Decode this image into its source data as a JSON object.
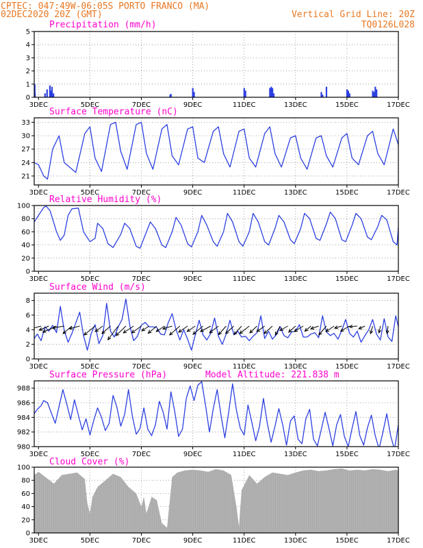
{
  "header": {
    "line1_left": "CPTEC:   047:49W-06:05S   PORTO FRANCO (MA)",
    "line2_left": "02DEC2020 20Z (GMT)",
    "line1_right": "Vertical Grid Line: 20Z",
    "line2_right": "TQ0126L028"
  },
  "colors": {
    "series": "#2b3fe0",
    "cloud": "#aaaaaa",
    "header": "#e87722",
    "title": "#ff00cc",
    "arrow": "#000000"
  },
  "x_axis": {
    "range_days": [
      2.833,
      17.0
    ],
    "tick_days": [
      3,
      5,
      7,
      9,
      11,
      13,
      15,
      17
    ],
    "tick_labels": [
      "3DEC",
      "5DEC",
      "7DEC",
      "9DEC",
      "11DEC",
      "13DEC",
      "15DEC",
      "17DEC"
    ],
    "grid": "dotted"
  },
  "chart_data": [
    {
      "type": "bar",
      "title": "Precipitation (mm/h)",
      "ylim": [
        0,
        5
      ],
      "yticks": [
        0,
        1,
        2,
        3,
        4,
        5
      ],
      "series": [
        {
          "x": [
            2.85,
            2.86,
            3.25,
            3.33,
            3.44,
            3.48,
            3.52,
            3.58,
            8.12,
            8.15,
            9.0,
            9.05,
            11.0,
            11.05,
            12.0,
            12.05,
            12.1,
            12.15,
            14.0,
            14.05,
            14.2,
            15.0,
            15.05,
            15.1,
            16.0,
            16.05,
            16.1,
            16.15
          ],
          "values": [
            1.0,
            0.3,
            0.3,
            0.6,
            0.9,
            0.5,
            0.8,
            0.3,
            0.2,
            0.25,
            0.7,
            0.4,
            0.7,
            0.5,
            0.7,
            0.8,
            0.7,
            0.3,
            0.4,
            0.2,
            0.8,
            0.6,
            0.5,
            0.3,
            0.5,
            0.4,
            0.8,
            0.6
          ]
        }
      ]
    },
    {
      "type": "line",
      "title": "Surface Temperature (nC)",
      "ylim": [
        19,
        34
      ],
      "yticks": [
        21,
        24,
        27,
        30,
        33
      ],
      "series": [
        {
          "x": [
            2.833,
            3.0,
            3.2,
            3.35,
            3.55,
            3.8,
            4.0,
            4.45,
            4.8,
            5.0,
            5.2,
            5.45,
            5.8,
            6.0,
            6.2,
            6.45,
            6.8,
            7.0,
            7.2,
            7.45,
            7.8,
            8.0,
            8.2,
            8.45,
            8.8,
            9.0,
            9.2,
            9.45,
            9.8,
            10.0,
            10.2,
            10.45,
            10.8,
            11.0,
            11.2,
            11.45,
            11.8,
            12.0,
            12.2,
            12.45,
            12.8,
            13.0,
            13.2,
            13.45,
            13.8,
            14.0,
            14.2,
            14.45,
            14.8,
            15.0,
            15.2,
            15.45,
            15.8,
            16.0,
            16.2,
            16.45,
            16.8,
            17.0
          ],
          "values": [
            24.0,
            23.5,
            21.0,
            20.3,
            27.0,
            30.0,
            24.0,
            21.8,
            30.5,
            32.0,
            25.0,
            22.0,
            32.5,
            33.0,
            26.5,
            22.5,
            32.5,
            33.0,
            26.0,
            22.5,
            31.5,
            32.5,
            25.5,
            23.5,
            31.5,
            32.0,
            25.0,
            24.0,
            31.0,
            32.0,
            26.0,
            23.0,
            31.0,
            31.5,
            25.0,
            23.0,
            30.5,
            32.0,
            26.0,
            23.0,
            29.5,
            30.0,
            25.0,
            22.5,
            29.5,
            30.0,
            25.5,
            23.0,
            29.5,
            30.5,
            25.0,
            23.5,
            30.0,
            31.0,
            26.0,
            23.5,
            31.5,
            28.0
          ]
        }
      ]
    },
    {
      "type": "line",
      "title": "Relative Humidity (%)",
      "ylim": [
        0,
        100
      ],
      "yticks": [
        0,
        20,
        40,
        60,
        80,
        100
      ],
      "series": [
        {
          "x": [
            2.833,
            3.0,
            3.2,
            3.3,
            3.45,
            3.7,
            3.85,
            4.0,
            4.15,
            4.3,
            4.55,
            4.75,
            5.0,
            5.2,
            5.3,
            5.5,
            5.7,
            5.9,
            6.2,
            6.35,
            6.55,
            6.8,
            6.95,
            7.2,
            7.35,
            7.55,
            7.8,
            7.95,
            8.2,
            8.35,
            8.55,
            8.8,
            8.95,
            9.2,
            9.35,
            9.55,
            9.8,
            9.95,
            10.2,
            10.35,
            10.55,
            10.8,
            10.95,
            11.2,
            11.35,
            11.55,
            11.8,
            11.95,
            12.2,
            12.35,
            12.55,
            12.8,
            12.95,
            13.2,
            13.35,
            13.55,
            13.8,
            13.95,
            14.2,
            14.35,
            14.55,
            14.8,
            14.95,
            15.2,
            15.35,
            15.55,
            15.8,
            15.95,
            16.2,
            16.35,
            16.55,
            16.8,
            16.95,
            17.0
          ],
          "values": [
            75,
            85,
            97,
            99,
            92,
            60,
            47,
            55,
            85,
            95,
            96,
            60,
            45,
            50,
            73,
            65,
            42,
            36,
            56,
            73,
            65,
            38,
            35,
            60,
            75,
            65,
            40,
            36,
            60,
            82,
            70,
            42,
            37,
            60,
            85,
            70,
            45,
            38,
            60,
            88,
            75,
            45,
            38,
            60,
            88,
            75,
            45,
            40,
            65,
            85,
            75,
            48,
            42,
            65,
            88,
            80,
            50,
            47,
            72,
            90,
            80,
            48,
            45,
            70,
            88,
            80,
            52,
            48,
            68,
            85,
            78,
            45,
            40,
            67
          ]
        }
      ]
    },
    {
      "type": "line",
      "title": "Surface Wind (m/s)",
      "ylim": [
        0,
        9
      ],
      "yticks": [
        0,
        2,
        4,
        6,
        8
      ],
      "series": [
        {
          "x": [
            2.833,
            2.95,
            3.1,
            3.25,
            3.4,
            3.55,
            3.7,
            3.85,
            4.0,
            4.15,
            4.3,
            4.45,
            4.6,
            4.75,
            4.9,
            5.05,
            5.2,
            5.35,
            5.5,
            5.65,
            5.8,
            5.95,
            6.1,
            6.25,
            6.4,
            6.55,
            6.7,
            6.85,
            7.0,
            7.15,
            7.3,
            7.45,
            7.6,
            7.75,
            7.9,
            8.05,
            8.2,
            8.35,
            8.5,
            8.65,
            8.8,
            8.95,
            9.1,
            9.25,
            9.4,
            9.55,
            9.7,
            9.85,
            10.0,
            10.15,
            10.3,
            10.45,
            10.6,
            10.75,
            10.9,
            11.05,
            11.2,
            11.35,
            11.5,
            11.65,
            11.8,
            11.95,
            12.1,
            12.25,
            12.4,
            12.55,
            12.7,
            12.85,
            13.0,
            13.15,
            13.3,
            13.45,
            13.6,
            13.75,
            13.9,
            14.05,
            14.2,
            14.35,
            14.5,
            14.65,
            14.8,
            14.95,
            15.1,
            15.25,
            15.4,
            15.55,
            15.7,
            15.85,
            16.0,
            16.15,
            16.3,
            16.45,
            16.6,
            16.75,
            16.9,
            17.0
          ],
          "values": [
            2.8,
            3.4,
            2.5,
            4.4,
            3.8,
            4.6,
            3.6,
            7.2,
            3.9,
            2.3,
            3.5,
            4.9,
            6.4,
            3.2,
            1.2,
            3.5,
            4.7,
            2.1,
            3.2,
            7.6,
            3.8,
            3.0,
            4.4,
            5.4,
            8.2,
            4.6,
            2.5,
            3.1,
            4.6,
            5.0,
            4.4,
            4.4,
            4.3,
            3.4,
            3.3,
            5.0,
            6.2,
            4.0,
            2.6,
            4.0,
            2.7,
            1.2,
            3.3,
            5.3,
            3.3,
            2.6,
            3.5,
            5.6,
            3.1,
            2.0,
            3.4,
            5.3,
            3.3,
            3.8,
            3.0,
            3.1,
            2.5,
            3.1,
            3.6,
            5.9,
            2.8,
            3.8,
            2.7,
            3.3,
            4.4,
            3.2,
            2.9,
            3.7,
            3.8,
            4.7,
            3.0,
            3.0,
            3.4,
            3.6,
            2.9,
            5.9,
            3.7,
            3.2,
            3.5,
            2.7,
            3.9,
            5.4,
            3.5,
            3.0,
            3.8,
            2.3,
            3.2,
            4.0,
            5.4,
            3.4,
            2.6,
            5.5,
            3.0,
            2.4,
            5.9,
            4.4
          ]
        }
      ],
      "vector_series": {
        "x": [
          3.1,
          3.4,
          3.7,
          4.0,
          4.3,
          4.6,
          5.2,
          5.5,
          5.8,
          6.1,
          6.4,
          6.7,
          7.0,
          7.3,
          7.6,
          7.9,
          8.2,
          8.5,
          8.8,
          9.1,
          9.4,
          9.7,
          10.0,
          10.3,
          10.6,
          10.9,
          11.2,
          11.5,
          11.8,
          12.1,
          12.4,
          12.7,
          13.0,
          13.3,
          13.6,
          13.9,
          14.2,
          14.5,
          14.8,
          15.1,
          15.4,
          15.7,
          16.0,
          16.3,
          16.6
        ],
        "u": [
          -3.6,
          -2.8,
          -4.0,
          -3.5,
          -2.6,
          -3.0,
          -3.2,
          -2.2,
          -2.5,
          -3.0,
          -2.9,
          -3.0,
          -2.8,
          -2.1,
          -2.5,
          -2.4,
          -2.7,
          -3.0,
          -2.6,
          -2.4,
          -2.9,
          -3.0,
          -2.6,
          -2.2,
          -2.4,
          -2.2,
          -2.8,
          -2.1,
          -2.3,
          -2.4,
          -1.4,
          -2.3,
          -2.0,
          -2.6,
          -1.8,
          -2.3,
          -2.2,
          -2.4,
          -2.1,
          -2.6,
          -2.3,
          -1.8,
          -0.6,
          -0.4,
          -0.3
        ],
        "v": [
          -1.0,
          -1.2,
          -1.8,
          -0.6,
          -2.2,
          -0.8,
          -2.6,
          -1.6,
          -2.2,
          -4.0,
          -2.8,
          -2.0,
          -2.0,
          -1.4,
          -2.1,
          -1.6,
          -0.8,
          -2.6,
          -1.8,
          -1.6,
          -2.4,
          -1.6,
          -2.0,
          -2.5,
          -2.2,
          -2.5,
          -2.2,
          -2.0,
          -1.6,
          -2.2,
          -2.6,
          -1.3,
          -1.8,
          -1.6,
          -1.5,
          -0.8,
          -2.6,
          -1.6,
          -0.6,
          -1.5,
          -0.2,
          -0.8,
          -2.2,
          -2.0,
          -2.2
        ]
      }
    },
    {
      "type": "line",
      "title": "Surface Pressure (hPa)",
      "annotation": "Model Altitude: 221.838 m",
      "ylim": [
        980,
        989
      ],
      "yticks": [
        980,
        982,
        984,
        986,
        988
      ],
      "series": [
        {
          "x": [
            2.833,
            2.95,
            3.1,
            3.2,
            3.35,
            3.5,
            3.65,
            3.8,
            3.95,
            4.1,
            4.25,
            4.4,
            4.55,
            4.7,
            4.85,
            5.0,
            5.15,
            5.3,
            5.45,
            5.6,
            5.75,
            5.9,
            6.05,
            6.2,
            6.35,
            6.5,
            6.65,
            6.8,
            6.95,
            7.1,
            7.25,
            7.4,
            7.55,
            7.7,
            7.85,
            8.0,
            8.15,
            8.3,
            8.45,
            8.6,
            8.75,
            8.9,
            9.05,
            9.2,
            9.35,
            9.5,
            9.65,
            9.8,
            9.95,
            10.1,
            10.25,
            10.4,
            10.55,
            10.7,
            10.85,
            11.0,
            11.15,
            11.3,
            11.45,
            11.6,
            11.75,
            11.9,
            12.05,
            12.2,
            12.35,
            12.5,
            12.65,
            12.8,
            12.95,
            13.1,
            13.25,
            13.4,
            13.55,
            13.7,
            13.85,
            14.0,
            14.15,
            14.3,
            14.45,
            14.6,
            14.75,
            14.9,
            15.05,
            15.2,
            15.35,
            15.5,
            15.65,
            15.8,
            15.95,
            16.1,
            16.25,
            16.4,
            16.55,
            16.7,
            16.85,
            17.0
          ],
          "values": [
            984.5,
            985.1,
            985.6,
            986.3,
            986.0,
            984.6,
            983.2,
            985.5,
            987.8,
            985.8,
            983.7,
            986.4,
            984.3,
            982.3,
            983.8,
            981.6,
            983.6,
            985.3,
            984.0,
            982.2,
            983.2,
            987.0,
            985.4,
            982.8,
            984.4,
            987.8,
            984.2,
            981.7,
            982.5,
            985.3,
            982.4,
            981.5,
            983.0,
            986.2,
            984.7,
            982.4,
            987.5,
            984.8,
            981.4,
            982.4,
            986.6,
            988.3,
            986.3,
            988.4,
            988.9,
            985.6,
            982.0,
            985.2,
            987.8,
            984.3,
            981.2,
            984.8,
            988.6,
            985.0,
            982.5,
            981.6,
            985.7,
            983.3,
            980.8,
            982.8,
            986.6,
            983.2,
            980.6,
            982.8,
            985.2,
            983.0,
            980.2,
            983.5,
            984.2,
            981.0,
            980.4,
            983.8,
            985.1,
            981.0,
            980.1,
            982.3,
            984.7,
            982.5,
            980.1,
            983.0,
            984.4,
            981.4,
            980.0,
            982.5,
            984.8,
            981.5,
            980.2,
            982.6,
            984.3,
            981.5,
            979.7,
            982.0,
            984.5,
            981.5,
            979.6,
            983.0
          ]
        }
      ]
    },
    {
      "type": "area",
      "title": "Cloud Cover (%)",
      "ylim": [
        0,
        100
      ],
      "yticks": [
        0,
        20,
        40,
        60,
        80,
        100
      ],
      "series": [
        {
          "x": [
            2.833,
            3.0,
            3.3,
            3.6,
            3.9,
            4.2,
            4.5,
            4.8,
            4.9,
            5.0,
            5.1,
            5.3,
            5.6,
            5.9,
            6.2,
            6.5,
            6.8,
            7.0,
            7.1,
            7.2,
            7.4,
            7.6,
            7.8,
            8.0,
            8.2,
            8.4,
            8.7,
            9.0,
            9.3,
            9.6,
            9.9,
            10.2,
            10.5,
            10.7,
            10.8,
            10.9,
            11.2,
            11.5,
            11.8,
            12.1,
            12.4,
            12.7,
            13.0,
            13.3,
            13.6,
            13.9,
            14.2,
            14.5,
            14.8,
            15.1,
            15.4,
            15.7,
            16.0,
            16.3,
            16.6,
            16.9,
            17.0
          ],
          "values": [
            88,
            93,
            84,
            75,
            88,
            90,
            92,
            82,
            45,
            30,
            55,
            70,
            80,
            90,
            85,
            70,
            60,
            40,
            55,
            30,
            55,
            50,
            15,
            8,
            85,
            92,
            95,
            96,
            95,
            93,
            97,
            95,
            88,
            40,
            10,
            65,
            88,
            75,
            85,
            92,
            90,
            88,
            92,
            95,
            96,
            94,
            95,
            97,
            98,
            95,
            96,
            95,
            97,
            96,
            94,
            96,
            95
          ]
        }
      ]
    }
  ]
}
